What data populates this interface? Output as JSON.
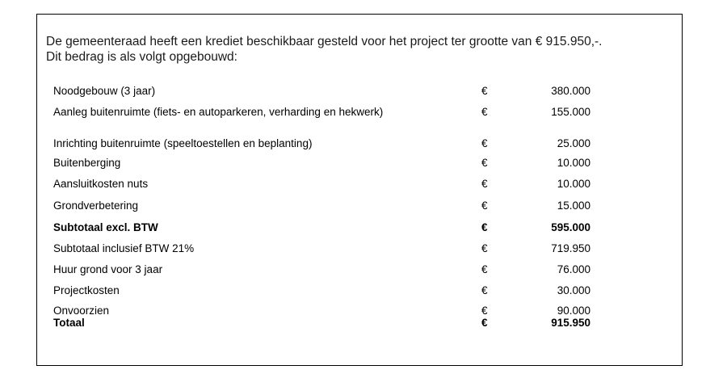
{
  "intro": {
    "line1": "De gemeenteraad heeft een krediet beschikbaar gesteld voor het project ter grootte van € 915.950,-.",
    "line2": "Dit bedrag is als volgt opgebouwd:"
  },
  "currency_symbol": "€",
  "rows": [
    {
      "label": "Noodgebouw (3 jaar)",
      "currency": "€",
      "amount": "380.000"
    },
    {
      "label": "Aanleg buitenruimte (fiets- en autoparkeren, verharding en hekwerk)",
      "currency": "€",
      "amount": "155.000"
    },
    {
      "label": "Inrichting buitenruimte (speeltoestellen en beplanting)",
      "currency": "€",
      "amount": "25.000"
    },
    {
      "label": "Buitenberging",
      "currency": "€",
      "amount": "10.000"
    },
    {
      "label": "Aansluitkosten nuts",
      "currency": "€",
      "amount": "10.000"
    },
    {
      "label": "Grondverbetering",
      "currency": "€",
      "amount": "15.000"
    },
    {
      "label": "Subtotaal excl. BTW",
      "currency": "€",
      "amount": "595.000"
    },
    {
      "label": "Subtotaal inclusief BTW 21%",
      "currency": "€",
      "amount": "719.950"
    },
    {
      "label": "Huur grond voor 3 jaar",
      "currency": "€",
      "amount": "76.000"
    },
    {
      "label": "Projectkosten",
      "currency": "€",
      "amount": "30.000"
    },
    {
      "label": "Onvoorzien",
      "currency": "€",
      "amount": "90.000"
    },
    {
      "label": "Totaal",
      "currency": "€",
      "amount": "915.950"
    }
  ]
}
